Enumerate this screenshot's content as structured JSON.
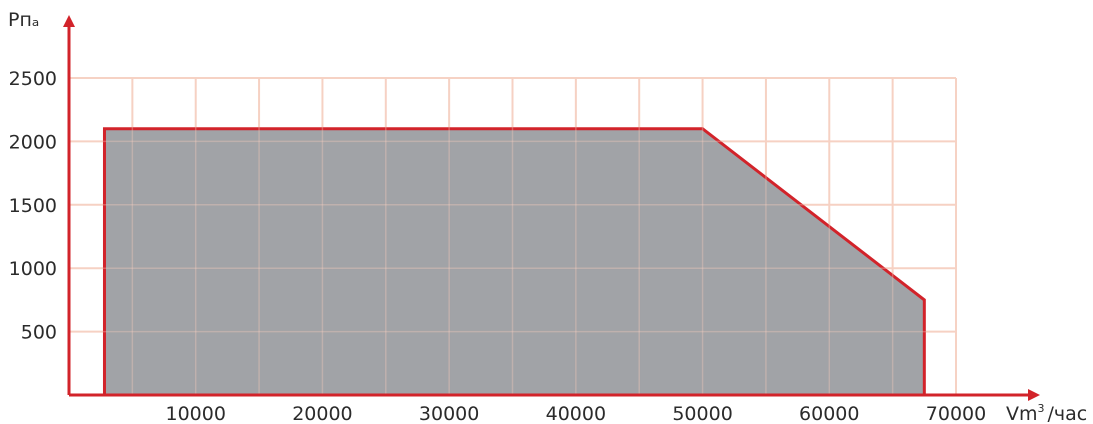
{
  "chart_data": {
    "type": "area",
    "title": "",
    "ylabel": "Рпₐ",
    "xlabel_main": "Vm",
    "xlabel_sup": "3",
    "xlabel_tail": "/час",
    "xlim": [
      0,
      70000
    ],
    "ylim": [
      0,
      2500
    ],
    "grid": true,
    "x_ticks": [
      10000,
      20000,
      30000,
      40000,
      50000,
      60000,
      70000
    ],
    "x_tick_labels": [
      "10000",
      "20000",
      "30000",
      "40000",
      "50000",
      "60000",
      "70000"
    ],
    "y_ticks": [
      500,
      1000,
      1500,
      2000,
      2500
    ],
    "y_tick_labels": [
      "500",
      "1000",
      "1500",
      "2000",
      "2500"
    ],
    "series": [
      {
        "x": [
          2800,
          2800,
          50000,
          67500,
          67500
        ],
        "y": [
          0,
          2100,
          2100,
          750,
          0
        ]
      }
    ],
    "colors": {
      "grid": "#f6d2c4",
      "fill": "#9a9ca0",
      "outline": "#d2232a",
      "axis": "#d2232a"
    }
  }
}
